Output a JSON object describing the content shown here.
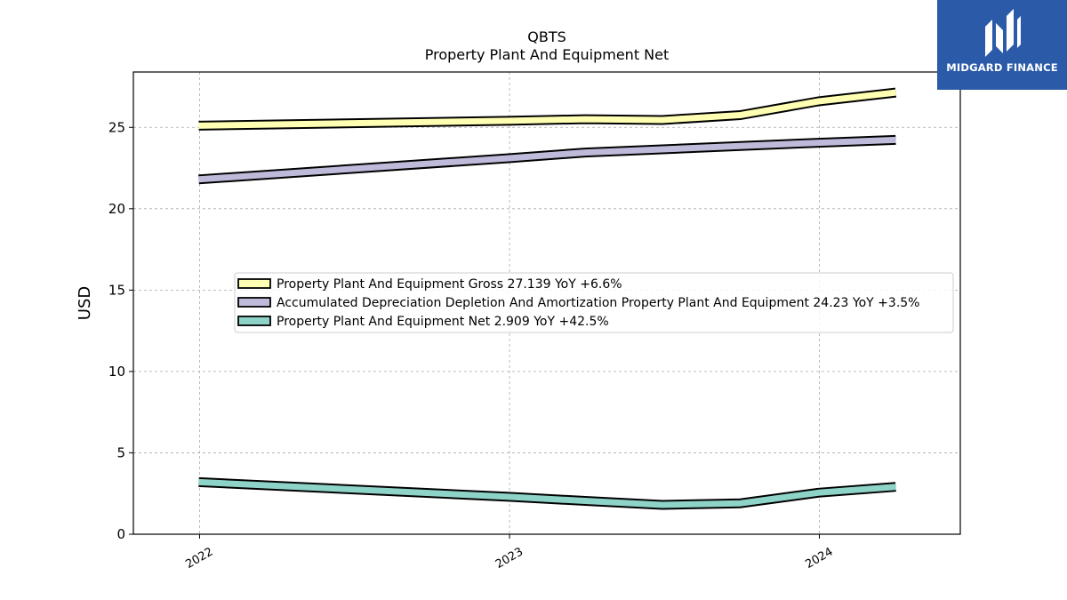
{
  "chart_data": {
    "type": "line",
    "title": "QBTS",
    "subtitle": "Property Plant And Equipment Net",
    "ylabel": "USD",
    "xlabel": "",
    "ylim": [
      0,
      28.4
    ],
    "xlim": [
      "2021-10-15",
      "2024-06-15"
    ],
    "yticks": [
      0,
      5,
      10,
      15,
      20,
      25
    ],
    "xticks": [
      {
        "label": "2022",
        "date": "2022-01-01"
      },
      {
        "label": "2023",
        "date": "2023-01-01"
      },
      {
        "label": "2024",
        "date": "2024-01-01"
      }
    ],
    "grid": true,
    "legend_position": "center",
    "x": [
      "2021-12-31",
      "2022-12-31",
      "2023-03-31",
      "2023-06-30",
      "2023-09-30",
      "2023-12-31",
      "2024-03-31"
    ],
    "series": [
      {
        "name": "Property Plant And Equipment Gross",
        "legend_label": "Property Plant And Equipment Gross  27.139 YoY +6.6%",
        "color": "#ffffb3",
        "values": [
          25.1,
          25.4,
          25.5,
          25.45,
          25.75,
          26.6,
          27.139
        ]
      },
      {
        "name": "Accumulated Depreciation Depletion And Amortization Property Plant And Equipment",
        "legend_label": "Accumulated Depreciation Depletion And Amortization Property Plant And Equipment  24.23 YoY +3.5%",
        "color": "#bebada",
        "values": [
          21.8,
          23.1,
          23.45,
          23.65,
          23.85,
          24.05,
          24.23
        ]
      },
      {
        "name": "Property Plant And Equipment Net",
        "legend_label": "Property Plant And Equipment Net  2.909 YoY +42.5%",
        "color": "#8dd3c7",
        "values": [
          3.2,
          2.3,
          2.05,
          1.8,
          1.9,
          2.55,
          2.909
        ]
      }
    ]
  },
  "logo": {
    "text": "MIDGARD FINANCE",
    "color": "#2a5aa8"
  }
}
